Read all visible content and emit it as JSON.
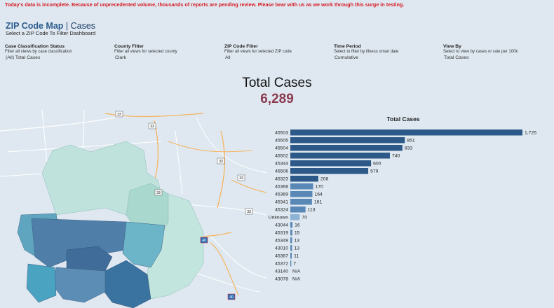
{
  "banner": "Today's data is incomplete. Because of unprecedented volume, thousands of reports are pending review. Please bear with us as we work through this surge in testing.",
  "dashboard": {
    "title_main": "ZIP Code Map",
    "title_sep": " | ",
    "title_section": "Cases",
    "subtitle": "Select a ZIP Code To Filter Dashboard"
  },
  "filters": [
    {
      "label": "Case Classification Status",
      "description": "Filter all views by case classification",
      "value": "(All) Total Cases"
    },
    {
      "label": "County Filter",
      "description": "Filter all views for selected county",
      "value": "Clark"
    },
    {
      "label": "ZIP Code Filter",
      "description": "Filter all views for selected ZIP code",
      "value": "All"
    },
    {
      "label": "Time Period",
      "description": "Select to filter by illness onset date",
      "value": "Cumulative"
    },
    {
      "label": "View By",
      "description": "Select to view by cases or rate per 100k",
      "value": "Total Cases"
    }
  ],
  "kpi": {
    "label": "Total Cases",
    "value": "6,289"
  },
  "map": {
    "highway_shields": [
      "33",
      "33",
      "33",
      "33",
      "33",
      "33",
      "40",
      "40"
    ]
  },
  "colors": {
    "bar": "#2c5987",
    "bar_light": "#8fb3d6",
    "banner": "#d71920",
    "kpi_value": "#8b3a4e",
    "title": "#1f3f66"
  },
  "chart_data": {
    "type": "bar",
    "orientation": "horizontal",
    "title": "Total Cases",
    "categories": [
      "45503",
      "45505",
      "45504",
      "45502",
      "45344",
      "45506",
      "45323",
      "45368",
      "45369",
      "45341",
      "45324",
      "Unknown",
      "43044",
      "45319",
      "45349",
      "43010",
      "45387",
      "45372",
      "43140",
      "43078"
    ],
    "values": [
      1725,
      851,
      833,
      740,
      600,
      579,
      208,
      170,
      164,
      161,
      113,
      70,
      16,
      15,
      13,
      13,
      11,
      7,
      null,
      null
    ],
    "value_labels": [
      "1,725",
      "851",
      "833",
      "740",
      "600",
      "579",
      "208",
      "170",
      "164",
      "161",
      "113",
      "70",
      "16",
      "15",
      "13",
      "13",
      "11",
      "7",
      "N/A",
      "N/A"
    ],
    "xmax": 1725
  }
}
